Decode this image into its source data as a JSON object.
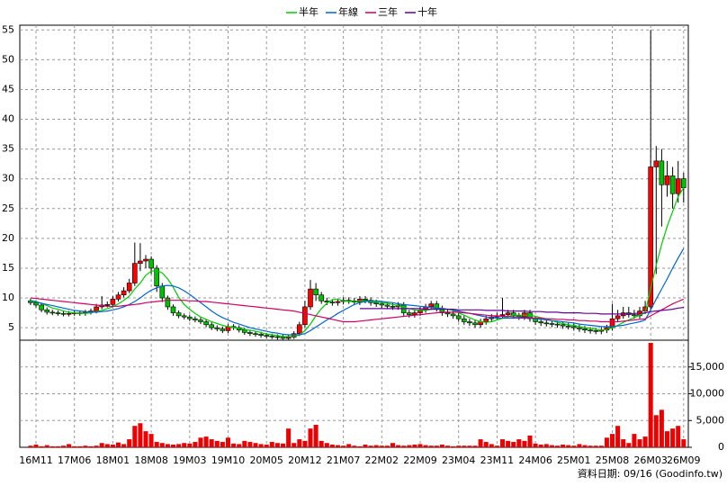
{
  "chart_data": {
    "type": "candlestick",
    "categories": [
      null,
      "16M11",
      null,
      null,
      null,
      null,
      null,
      null,
      "17M06",
      null,
      null,
      null,
      null,
      null,
      null,
      "18M01",
      null,
      null,
      null,
      null,
      null,
      null,
      "18M08",
      null,
      null,
      null,
      null,
      null,
      null,
      "19M03",
      null,
      null,
      null,
      null,
      null,
      null,
      "19M10",
      null,
      null,
      null,
      null,
      null,
      null,
      "20M05",
      null,
      null,
      null,
      null,
      null,
      null,
      "20M12",
      null,
      null,
      null,
      null,
      null,
      null,
      "21M07",
      null,
      null,
      null,
      null,
      null,
      null,
      "22M02",
      null,
      null,
      null,
      null,
      null,
      null,
      "22M09",
      null,
      null,
      null,
      null,
      null,
      null,
      "23M04",
      null,
      null,
      null,
      null,
      null,
      null,
      "23M11",
      null,
      null,
      null,
      null,
      null,
      null,
      "24M06",
      null,
      null,
      null,
      null,
      null,
      null,
      "25M01",
      null,
      null,
      null,
      null,
      null,
      null,
      "25M08",
      null,
      null,
      null,
      null,
      null,
      null,
      "26M03",
      null,
      null,
      null,
      null,
      null,
      "26M09"
    ],
    "open": [
      9.5,
      9.2,
      8.8,
      8.0,
      7.6,
      7.5,
      7.4,
      7.3,
      7.4,
      7.5,
      7.4,
      7.6,
      7.8,
      8.5,
      8.8,
      8.9,
      9.8,
      10.5,
      11.2,
      12.5,
      15.8,
      16.2,
      16.5,
      15.0,
      12.0,
      10.0,
      8.5,
      7.5,
      7.0,
      6.8,
      6.5,
      6.3,
      6.0,
      5.5,
      5.0,
      4.8,
      4.5,
      5.2,
      5.0,
      4.6,
      4.2,
      4.0,
      3.9,
      3.7,
      3.6,
      3.5,
      3.4,
      3.2,
      3.4,
      4.0,
      5.5,
      8.5,
      11.5,
      10.5,
      9.5,
      9.3,
      9.2,
      9.4,
      9.6,
      9.5,
      9.3,
      9.8,
      9.6,
      9.2,
      9.0,
      8.8,
      8.6,
      8.5,
      8.8,
      7.5,
      7.2,
      7.5,
      8.0,
      8.5,
      9.0,
      8.2,
      7.5,
      7.3,
      7.0,
      6.5,
      6.0,
      5.8,
      5.5,
      6.0,
      6.5,
      6.8,
      7.0,
      7.2,
      7.5,
      7.0,
      6.8,
      7.5,
      6.5,
      6.0,
      5.8,
      5.7,
      5.6,
      5.5,
      5.3,
      5.2,
      5.0,
      4.8,
      4.6,
      4.5,
      4.4,
      4.6,
      5.0,
      6.5,
      7.0,
      7.5,
      7.2,
      7.0,
      7.8,
      8.5,
      32,
      33,
      29,
      30.5,
      27.5,
      30
    ],
    "high": [
      9.9,
      9.6,
      9.2,
      8.4,
      8.0,
      7.9,
      7.8,
      7.8,
      7.9,
      7.9,
      8.0,
      8.2,
      9.0,
      10.3,
      9.4,
      10.3,
      11.0,
      11.8,
      13.2,
      19.3,
      19.2,
      17.2,
      17.0,
      15.5,
      12.5,
      10.4,
      8.9,
      7.9,
      7.4,
      7.2,
      6.9,
      6.7,
      6.4,
      5.9,
      5.4,
      5.2,
      5.6,
      5.6,
      5.4,
      5.0,
      4.6,
      4.4,
      4.3,
      4.1,
      4.0,
      3.9,
      3.8,
      3.8,
      4.4,
      6.0,
      9.5,
      13.0,
      12.5,
      11.0,
      10.0,
      9.8,
      9.9,
      10.1,
      10.1,
      10.0,
      10.3,
      10.3,
      10.1,
      9.7,
      9.5,
      9.3,
      9.1,
      9.3,
      9.3,
      8.0,
      8.0,
      8.5,
      9.0,
      9.5,
      9.5,
      8.7,
      8.0,
      7.8,
      7.5,
      7.0,
      6.5,
      6.3,
      6.5,
      7.0,
      7.3,
      7.5,
      10.0,
      8.0,
      8.0,
      7.5,
      8.0,
      8.0,
      7.0,
      6.5,
      6.3,
      6.2,
      6.1,
      6.0,
      5.8,
      5.7,
      5.5,
      5.3,
      5.1,
      5.0,
      5.1,
      5.5,
      9.0,
      8.0,
      8.5,
      8.5,
      8.0,
      8.5,
      9.5,
      55,
      35.5,
      35,
      33,
      32,
      33,
      31
    ],
    "low": [
      8.8,
      8.4,
      7.6,
      7.2,
      7.1,
      7.0,
      6.9,
      6.9,
      7.0,
      7.0,
      7.0,
      7.2,
      7.4,
      8.1,
      8.4,
      8.5,
      9.4,
      10.1,
      10.8,
      12.0,
      14.5,
      15.0,
      14.0,
      11.0,
      9.3,
      8.0,
      7.0,
      6.6,
      6.4,
      6.1,
      5.9,
      5.6,
      5.1,
      4.6,
      4.4,
      4.1,
      4.1,
      4.6,
      4.2,
      3.8,
      3.6,
      3.5,
      3.3,
      3.2,
      3.1,
      3.0,
      3.0,
      3.0,
      3.1,
      3.6,
      5.0,
      8.0,
      9.5,
      9.0,
      8.8,
      8.7,
      8.7,
      8.9,
      9.0,
      8.8,
      8.8,
      9.1,
      8.7,
      8.5,
      8.3,
      8.1,
      8.0,
      8.0,
      7.0,
      6.7,
      6.7,
      7.0,
      7.5,
      8.0,
      7.7,
      7.0,
      6.8,
      6.5,
      6.0,
      5.5,
      5.3,
      5.0,
      5.0,
      5.5,
      6.0,
      6.3,
      6.5,
      6.7,
      6.5,
      6.3,
      6.3,
      6.0,
      5.5,
      5.3,
      5.2,
      5.1,
      5.0,
      4.8,
      4.7,
      4.5,
      4.3,
      4.1,
      4.0,
      3.9,
      3.9,
      4.1,
      4.5,
      6.0,
      6.5,
      6.7,
      6.5,
      6.5,
      7.3,
      8.0,
      14,
      22,
      27,
      25,
      26,
      26
    ],
    "close": [
      9.2,
      8.8,
      8.0,
      7.6,
      7.5,
      7.4,
      7.3,
      7.4,
      7.5,
      7.4,
      7.6,
      7.8,
      8.5,
      8.8,
      8.9,
      9.8,
      10.5,
      11.2,
      12.5,
      15.8,
      16.2,
      16.5,
      15.0,
      12.0,
      10.0,
      8.5,
      7.5,
      7.0,
      6.8,
      6.5,
      6.3,
      6.0,
      5.5,
      5.0,
      4.8,
      4.5,
      5.2,
      5.0,
      4.6,
      4.2,
      4.0,
      3.9,
      3.7,
      3.6,
      3.5,
      3.4,
      3.2,
      3.4,
      4.0,
      5.5,
      8.5,
      11.5,
      10.5,
      9.5,
      9.3,
      9.2,
      9.4,
      9.6,
      9.5,
      9.3,
      9.8,
      9.6,
      9.2,
      9.0,
      8.8,
      8.6,
      8.5,
      8.8,
      7.5,
      7.2,
      7.5,
      8.0,
      8.5,
      9.0,
      8.2,
      7.5,
      7.3,
      7.0,
      6.5,
      6.0,
      5.8,
      5.5,
      6.0,
      6.5,
      6.8,
      7.0,
      7.2,
      7.5,
      7.0,
      6.8,
      7.5,
      6.5,
      6.0,
      5.8,
      5.7,
      5.6,
      5.5,
      5.3,
      5.2,
      5.0,
      4.8,
      4.6,
      4.5,
      4.4,
      4.6,
      5.0,
      6.5,
      7.0,
      7.5,
      7.2,
      7.0,
      7.8,
      8.5,
      32,
      33,
      29,
      30.5,
      27.5,
      30,
      28.5
    ],
    "up_color": "#ff0000",
    "down_color": "#00c000",
    "ylim": [
      2.9,
      55.8
    ],
    "yticks": [
      5,
      10,
      15,
      20,
      25,
      30,
      35,
      40,
      45,
      50,
      55
    ],
    "series": [
      {
        "name": "半年",
        "color": "#00cc00",
        "values": [
          9.6,
          9.4,
          9.1,
          8.7,
          8.3,
          8.1,
          7.8,
          7.6,
          7.5,
          7.4,
          7.4,
          7.5,
          7.7,
          7.9,
          8.2,
          8.5,
          9.0,
          9.6,
          10.3,
          11.5,
          12.5,
          13.8,
          14.5,
          14.6,
          14.2,
          13.2,
          11.8,
          10.1,
          8.9,
          8.1,
          7.4,
          6.8,
          6.4,
          6.0,
          5.7,
          5.4,
          5.2,
          5.0,
          4.9,
          4.7,
          4.6,
          4.4,
          4.2,
          3.9,
          3.8,
          3.7,
          3.5,
          3.5,
          3.5,
          3.8,
          4.5,
          5.6,
          7.0,
          8.2,
          9.1,
          9.7,
          9.8,
          9.5,
          9.4,
          9.4,
          9.5,
          9.5,
          9.4,
          9.3,
          9.2,
          9.1,
          8.9,
          8.7,
          8.4,
          8.2,
          8.0,
          7.9,
          7.9,
          8.1,
          8.3,
          8.3,
          8.1,
          7.9,
          7.5,
          7.1,
          6.7,
          6.3,
          6.0,
          5.9,
          6.0,
          6.3,
          6.6,
          6.9,
          7.1,
          7.1,
          7.1,
          7.1,
          6.9,
          6.7,
          6.5,
          6.2,
          5.9,
          5.7,
          5.5,
          5.4,
          5.2,
          5.0,
          4.9,
          4.7,
          4.6,
          4.7,
          5.0,
          5.4,
          5.9,
          6.3,
          6.7,
          7.1,
          7.5,
          11.6,
          15.5,
          19.0,
          22.0,
          24.5,
          27.0,
          28.5
        ]
      },
      {
        "name": "年線",
        "color": "#0066cc",
        "values": [
          9.5,
          9.3,
          9.1,
          8.9,
          8.7,
          8.5,
          8.3,
          8.1,
          7.9,
          7.8,
          7.7,
          7.6,
          7.6,
          7.7,
          7.8,
          8.0,
          8.2,
          8.5,
          8.9,
          9.4,
          10.0,
          10.7,
          11.3,
          11.7,
          12.0,
          12.1,
          12.0,
          11.7,
          11.2,
          10.6,
          9.9,
          9.2,
          8.5,
          7.8,
          7.2,
          6.7,
          6.3,
          5.9,
          5.6,
          5.3,
          5.0,
          4.8,
          4.6,
          4.4,
          4.2,
          4.1,
          3.9,
          3.8,
          3.8,
          3.8,
          4.0,
          4.5,
          5.1,
          5.7,
          6.3,
          6.8,
          7.4,
          7.9,
          8.4,
          8.9,
          9.2,
          9.4,
          9.5,
          9.5,
          9.4,
          9.3,
          9.2,
          9.0,
          8.9,
          8.8,
          8.7,
          8.6,
          8.5,
          8.4,
          8.3,
          8.2,
          8.1,
          8.0,
          7.8,
          7.6,
          7.4,
          7.2,
          7.0,
          6.8,
          6.7,
          6.6,
          6.6,
          6.6,
          6.6,
          6.6,
          6.6,
          6.6,
          6.5,
          6.4,
          6.3,
          6.2,
          6.1,
          6.0,
          5.9,
          5.8,
          5.6,
          5.5,
          5.4,
          5.3,
          5.2,
          5.2,
          5.2,
          5.3,
          5.4,
          5.6,
          5.8,
          6.0,
          6.3,
          8.0,
          9.8,
          11.5,
          13.2,
          15.0,
          16.7,
          18.3
        ]
      },
      {
        "name": "三年",
        "color": "#cc0066",
        "values": [
          10.0,
          9.9,
          9.8,
          9.7,
          9.6,
          9.5,
          9.4,
          9.3,
          9.2,
          9.1,
          9.0,
          8.9,
          8.8,
          8.7,
          8.6,
          8.6,
          8.6,
          8.7,
          8.8,
          8.9,
          9.0,
          9.2,
          9.3,
          9.4,
          9.5,
          9.6,
          9.6,
          9.6,
          9.6,
          9.5,
          9.5,
          9.4,
          9.4,
          9.3,
          9.2,
          9.1,
          9.0,
          8.9,
          8.8,
          8.7,
          8.6,
          8.5,
          8.4,
          8.3,
          8.2,
          8.1,
          8.0,
          7.9,
          7.8,
          7.6,
          7.4,
          7.2,
          7.0,
          6.8,
          6.6,
          6.4,
          6.2,
          6.0,
          6.0,
          6.0,
          6.1,
          6.2,
          6.3,
          6.4,
          6.5,
          6.6,
          6.7,
          6.8,
          6.9,
          7.0,
          7.1,
          7.2,
          7.3,
          7.4,
          7.5,
          7.6,
          7.6,
          7.6,
          7.6,
          7.5,
          7.4,
          7.3,
          7.2,
          7.1,
          7.0,
          7.0,
          6.9,
          6.9,
          6.8,
          6.8,
          6.7,
          6.7,
          6.6,
          6.6,
          6.5,
          6.5,
          6.4,
          6.4,
          6.3,
          6.3,
          6.2,
          6.2,
          6.1,
          6.1,
          6.0,
          6.0,
          6.0,
          6.0,
          6.1,
          6.2,
          6.3,
          6.4,
          6.5,
          7.0,
          7.5,
          8.0,
          8.5,
          9.0,
          9.4,
          9.8
        ]
      },
      {
        "name": "十年",
        "color": "#660099",
        "values": [
          null,
          null,
          null,
          null,
          null,
          null,
          null,
          null,
          null,
          null,
          null,
          null,
          null,
          null,
          null,
          null,
          null,
          null,
          null,
          null,
          null,
          null,
          null,
          null,
          null,
          null,
          null,
          null,
          null,
          null,
          null,
          null,
          null,
          null,
          null,
          null,
          null,
          null,
          null,
          null,
          null,
          null,
          null,
          null,
          null,
          null,
          null,
          null,
          null,
          null,
          null,
          null,
          null,
          null,
          null,
          null,
          null,
          null,
          null,
          null,
          8.2,
          8.2,
          8.2,
          8.2,
          8.2,
          8.2,
          8.2,
          8.2,
          8.2,
          8.2,
          8.2,
          8.2,
          8.1,
          8.1,
          8.1,
          8.1,
          8.1,
          8.1,
          8.0,
          8.0,
          8.0,
          8.0,
          8.0,
          7.9,
          7.9,
          7.9,
          7.9,
          7.8,
          7.8,
          7.8,
          7.8,
          7.7,
          7.7,
          7.7,
          7.6,
          7.6,
          7.6,
          7.5,
          7.5,
          7.5,
          7.5,
          7.4,
          7.4,
          7.4,
          7.3,
          7.3,
          7.3,
          7.3,
          7.3,
          7.3,
          7.4,
          7.4,
          7.5,
          7.7,
          7.8,
          7.9,
          8.0,
          8.1,
          8.3,
          8.4
        ]
      }
    ],
    "volume": {
      "color": "#ee0000",
      "values": [
        300,
        500,
        200,
        400,
        200,
        200,
        300,
        600,
        200,
        200,
        300,
        200,
        300,
        800,
        600,
        500,
        900,
        600,
        1500,
        4000,
        4500,
        3000,
        2500,
        1000,
        800,
        600,
        500,
        600,
        800,
        700,
        1000,
        1800,
        2000,
        1500,
        1200,
        1000,
        1800,
        700,
        600,
        1200,
        1000,
        800,
        600,
        500,
        1000,
        800,
        700,
        3500,
        800,
        1500,
        1200,
        3500,
        4200,
        1200,
        800,
        500,
        400,
        300,
        600,
        300,
        200,
        500,
        300,
        400,
        300,
        300,
        800,
        400,
        300,
        400,
        500,
        600,
        400,
        300,
        300,
        500,
        300,
        200,
        300,
        300,
        300,
        300,
        1500,
        1000,
        600,
        300,
        1500,
        1200,
        1000,
        1500,
        1200,
        2200,
        700,
        500,
        600,
        400,
        300,
        500,
        400,
        300,
        600,
        400,
        300,
        300,
        300,
        1800,
        2500,
        4000,
        1500,
        800,
        2500,
        1500,
        2000,
        19500,
        6000,
        7000,
        3000,
        3500,
        4000,
        1500
      ],
      "ylim": [
        0,
        20000
      ],
      "yticks": [
        0,
        {
          "value": 5000,
          "label": "5,000"
        },
        {
          "value": 10000,
          "label": "10,000"
        },
        {
          "value": 15000,
          "label": "15,000"
        }
      ]
    },
    "grid": true,
    "footer": "資料日期: 09/16  (Goodinfo.tw)"
  }
}
